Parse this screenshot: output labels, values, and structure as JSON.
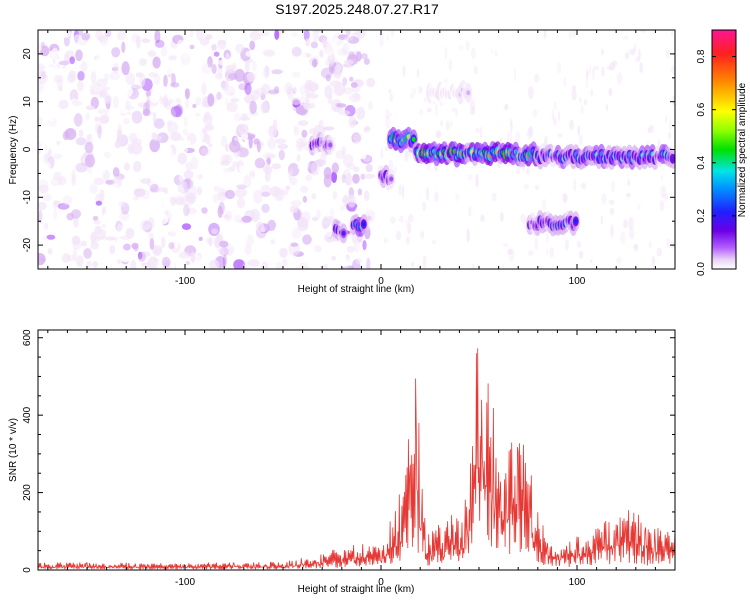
{
  "figure_title": "S197.2025.248.07.27.R17",
  "colors": {
    "snr_line": "#e53935",
    "colormap": [
      "#ffffff",
      "#f3e5f8",
      "#d7b0f2",
      "#a64dff",
      "#7a00e6",
      "#5a1ae6",
      "#2020ff",
      "#0096ff",
      "#00e5e5",
      "#00e000",
      "#b0ff00",
      "#ffff00",
      "#ff9900",
      "#ff2020",
      "#ff1493"
    ]
  },
  "chart_data": [
    {
      "type": "heatmap",
      "xlabel": "Height of straight line (km)",
      "ylabel": "Frequency (Hz)",
      "xlim": [
        -175,
        150
      ],
      "ylim": [
        -25,
        25
      ],
      "xticks": [
        -100,
        0,
        100
      ],
      "yticks": [
        -20,
        -10,
        0,
        10,
        20
      ],
      "colorbar": {
        "label": "Normalized spectral amplitude",
        "range": [
          0,
          0.9
        ],
        "ticks": [
          "0.0",
          "0.2",
          "0.4",
          "0.6",
          "0.8"
        ]
      },
      "features": [
        {
          "x": [
            -35,
            -25
          ],
          "freq": 1,
          "amplitude": 0.3
        },
        {
          "x": [
            -23,
            -18
          ],
          "freq": -17,
          "amplitude": 0.35
        },
        {
          "x": [
            -14,
            -8
          ],
          "freq": -15.5,
          "amplitude": 0.45
        },
        {
          "x": [
            0,
            6
          ],
          "freq": -6,
          "amplitude": 0.35
        },
        {
          "x": [
            5,
            18
          ],
          "freq": 2,
          "amplitude": 0.6
        },
        {
          "x": [
            18,
            80
          ],
          "freq": -1,
          "amplitude": 0.7
        },
        {
          "x": [
            80,
            150
          ],
          "freq": -1.5,
          "amplitude": 0.45
        },
        {
          "x": [
            76,
            100
          ],
          "freq": -15.5,
          "amplitude": 0.4
        },
        {
          "x": [
            25,
            45
          ],
          "freq": 12,
          "amplitude": 0.1
        }
      ]
    },
    {
      "type": "line",
      "xlabel": "Height of straight line (km)",
      "ylabel": "SNR (10 * v/v)",
      "xlim": [
        -175,
        150
      ],
      "ylim": [
        0,
        620
      ],
      "xticks": [
        -100,
        0,
        100
      ],
      "yticks": [
        0,
        200,
        400,
        600
      ],
      "series": [
        {
          "x": [
            -175,
            -150,
            -125,
            -100,
            -75,
            -50,
            -30,
            -20,
            -10,
            0,
            8,
            12,
            15,
            18,
            21,
            23,
            25,
            28,
            32,
            36,
            40,
            43,
            46,
            48,
            50,
            52,
            54,
            56,
            58,
            61,
            64,
            67,
            70,
            73,
            76,
            78,
            80,
            85,
            90,
            95,
            100,
            105,
            110,
            115,
            120,
            125,
            130,
            135,
            140,
            145,
            150
          ],
          "y": [
            18,
            18,
            17,
            17,
            18,
            20,
            40,
            55,
            70,
            50,
            160,
            230,
            420,
            480,
            200,
            120,
            80,
            120,
            90,
            140,
            120,
            180,
            290,
            490,
            560,
            610,
            460,
            420,
            380,
            240,
            250,
            330,
            330,
            300,
            330,
            90,
            150,
            70,
            60,
            70,
            80,
            90,
            100,
            120,
            130,
            150,
            140,
            120,
            100,
            110,
            100
          ]
        }
      ]
    }
  ]
}
